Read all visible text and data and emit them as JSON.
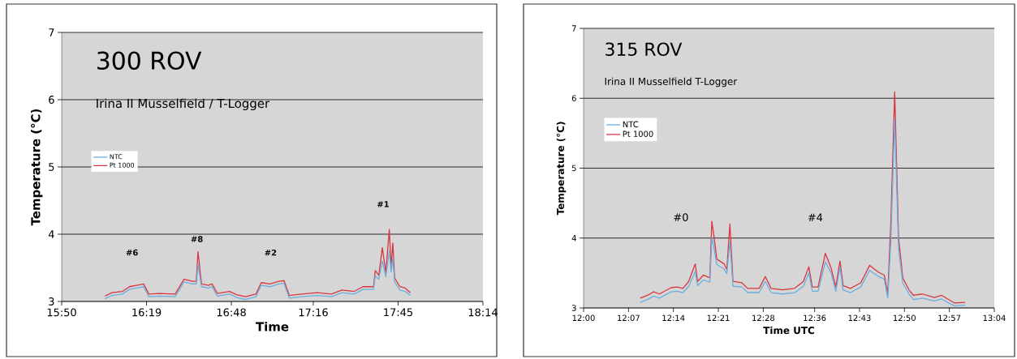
{
  "chart_data": [
    {
      "type": "line",
      "title": "300 ROV",
      "subtitle": "Irina II Musselfield / T-Logger",
      "xlabel": "Time",
      "ylabel": "Temperature (°C)",
      "xlim": [
        15.8333,
        18.2333
      ],
      "ylim": [
        3,
        7
      ],
      "xticks": [
        {
          "value": 15.8333,
          "label": "15:50"
        },
        {
          "value": 16.3167,
          "label": "16:19"
        },
        {
          "value": 16.8,
          "label": "16:48"
        },
        {
          "value": 17.2667,
          "label": "17:16"
        },
        {
          "value": 17.75,
          "label": "17:45"
        },
        {
          "value": 18.2333,
          "label": "18:14"
        }
      ],
      "yticks": [
        3,
        4,
        5,
        6,
        7
      ],
      "grid": "y",
      "legend": "top left",
      "marker": "none",
      "line_style": "solid",
      "x": [
        16.08,
        16.12,
        16.18,
        16.22,
        16.26,
        16.3,
        16.33,
        16.39,
        16.48,
        16.53,
        16.58,
        16.6,
        16.61,
        16.63,
        16.67,
        16.69,
        16.72,
        16.79,
        16.83,
        16.88,
        16.94,
        16.97,
        17.02,
        17.07,
        17.1,
        17.13,
        17.2,
        17.29,
        17.37,
        17.43,
        17.5,
        17.55,
        17.61,
        17.62,
        17.64,
        17.66,
        17.68,
        17.7,
        17.71,
        17.72,
        17.73,
        17.76,
        17.79,
        17.82
      ],
      "series": [
        {
          "name": "NTC",
          "color": "#6aaee0",
          "values": [
            3.04,
            3.09,
            3.11,
            3.18,
            3.2,
            3.22,
            3.07,
            3.08,
            3.07,
            3.29,
            3.26,
            3.26,
            3.55,
            3.22,
            3.2,
            3.22,
            3.08,
            3.11,
            3.06,
            3.03,
            3.07,
            3.24,
            3.22,
            3.26,
            3.27,
            3.05,
            3.07,
            3.09,
            3.07,
            3.13,
            3.11,
            3.18,
            3.18,
            3.38,
            3.33,
            3.6,
            3.37,
            3.75,
            3.44,
            3.65,
            3.29,
            3.17,
            3.15,
            3.09
          ]
        },
        {
          "name": "Pt 1000",
          "color": "#d9363e",
          "values": [
            3.08,
            3.13,
            3.15,
            3.22,
            3.24,
            3.26,
            3.11,
            3.12,
            3.11,
            3.33,
            3.3,
            3.3,
            3.74,
            3.26,
            3.24,
            3.26,
            3.12,
            3.15,
            3.1,
            3.07,
            3.11,
            3.28,
            3.26,
            3.3,
            3.31,
            3.09,
            3.11,
            3.13,
            3.11,
            3.17,
            3.15,
            3.22,
            3.22,
            3.46,
            3.39,
            3.8,
            3.43,
            4.07,
            3.52,
            3.87,
            3.35,
            3.22,
            3.2,
            3.13
          ]
        }
      ],
      "annotations": [
        "#6",
        "#8",
        "#2",
        "#1"
      ]
    },
    {
      "type": "line",
      "title": "315 ROV",
      "subtitle": "Irina II Musselfield T-Logger",
      "xlabel": "Time UTC",
      "ylabel": "Temperature (°C)",
      "xlim": [
        12,
        13.0667
      ],
      "ylim": [
        3,
        7
      ],
      "xticks": [
        {
          "value": 12,
          "label": "12:00"
        },
        {
          "value": 12.1167,
          "label": "12:07"
        },
        {
          "value": 12.2333,
          "label": "12:14"
        },
        {
          "value": 12.35,
          "label": "12:21"
        },
        {
          "value": 12.4667,
          "label": "12:28"
        },
        {
          "value": 12.6,
          "label": "12:36"
        },
        {
          "value": 12.7167,
          "label": "12:43"
        },
        {
          "value": 12.8333,
          "label": "12:50"
        },
        {
          "value": 12.95,
          "label": "12:57"
        },
        {
          "value": 13.0667,
          "label": "13:04"
        }
      ],
      "yticks": [
        3,
        4,
        5,
        6,
        7
      ],
      "grid": "y",
      "legend": "top left",
      "marker": "none",
      "line_style": "solid",
      "x": [
        12.147,
        12.166,
        12.182,
        12.197,
        12.227,
        12.243,
        12.258,
        12.273,
        12.29,
        12.296,
        12.311,
        12.328,
        12.333,
        12.338,
        12.346,
        12.365,
        12.372,
        12.38,
        12.388,
        12.411,
        12.426,
        12.456,
        12.472,
        12.487,
        12.517,
        12.548,
        12.571,
        12.585,
        12.594,
        12.609,
        12.628,
        12.643,
        12.655,
        12.666,
        12.674,
        12.693,
        12.72,
        12.743,
        12.766,
        12.781,
        12.79,
        12.798,
        12.808,
        12.818,
        12.829,
        12.845,
        12.857,
        12.88,
        12.911,
        12.93,
        12.945,
        12.964,
        12.991
      ],
      "series": [
        {
          "name": "NTC",
          "color": "#6aaee0",
          "values": [
            3.08,
            3.12,
            3.17,
            3.14,
            3.23,
            3.24,
            3.22,
            3.31,
            3.52,
            3.32,
            3.4,
            3.37,
            4.0,
            3.88,
            3.62,
            3.56,
            3.49,
            3.95,
            3.31,
            3.3,
            3.22,
            3.22,
            3.38,
            3.22,
            3.2,
            3.22,
            3.31,
            3.5,
            3.24,
            3.24,
            3.66,
            3.5,
            3.24,
            3.58,
            3.26,
            3.22,
            3.3,
            3.54,
            3.45,
            3.41,
            3.14,
            3.95,
            5.7,
            3.85,
            3.36,
            3.2,
            3.12,
            3.14,
            3.1,
            3.13,
            3.08,
            3.03,
            3.04
          ]
        },
        {
          "name": "Pt 1000",
          "color": "#d9363e",
          "values": [
            3.14,
            3.18,
            3.23,
            3.2,
            3.29,
            3.3,
            3.28,
            3.38,
            3.63,
            3.38,
            3.47,
            3.43,
            4.24,
            4.05,
            3.7,
            3.63,
            3.55,
            4.2,
            3.38,
            3.36,
            3.28,
            3.28,
            3.45,
            3.28,
            3.26,
            3.28,
            3.38,
            3.59,
            3.3,
            3.3,
            3.78,
            3.57,
            3.3,
            3.67,
            3.32,
            3.28,
            3.36,
            3.61,
            3.51,
            3.47,
            3.2,
            4.22,
            6.09,
            4.01,
            3.43,
            3.26,
            3.18,
            3.2,
            3.15,
            3.18,
            3.13,
            3.07,
            3.08
          ]
        }
      ],
      "annotations": [
        "#0",
        "#4"
      ]
    }
  ]
}
